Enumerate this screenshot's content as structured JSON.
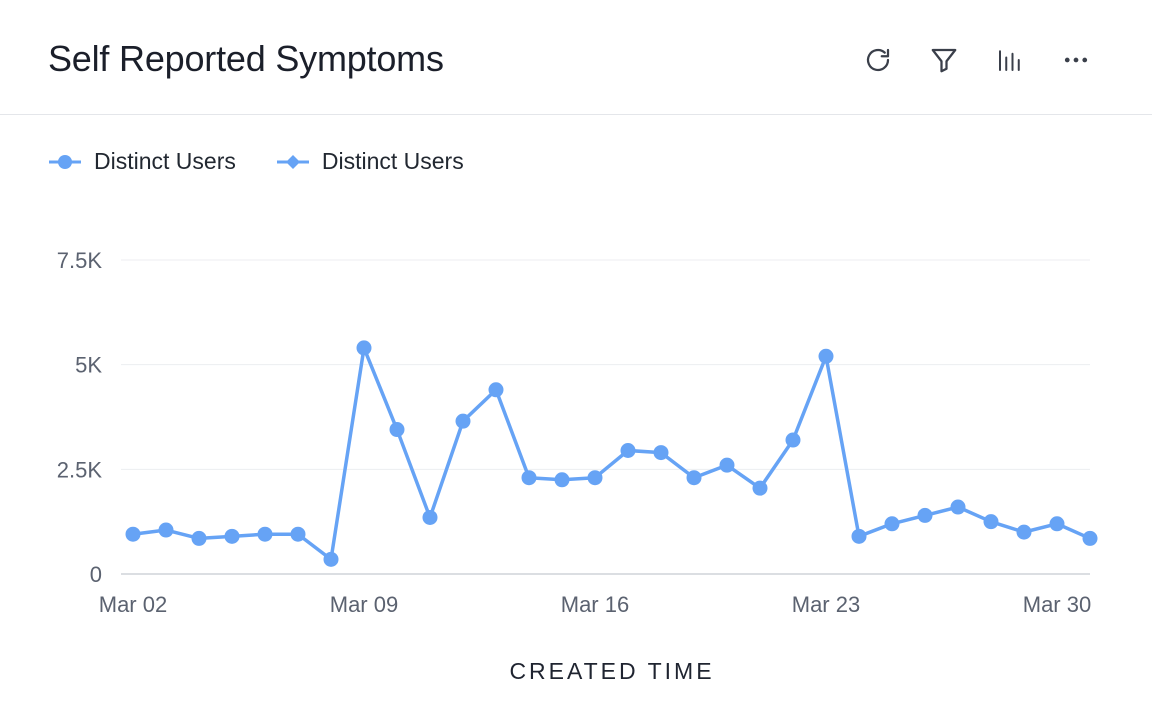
{
  "card": {
    "title": "Self Reported Symptoms",
    "toolbar": {
      "refresh_icon": "refresh-icon",
      "filter_icon": "filter-icon",
      "chart_type_icon": "bar-chart-icon",
      "more_icon": "more-horizontal-icon"
    }
  },
  "colors": {
    "series": "#66a3f5",
    "grid": "#eceef1",
    "axis": "#cfd3d9",
    "tick_text": "#5b6270"
  },
  "chart_data": {
    "type": "line",
    "title": "",
    "xlabel": "CREATED TIME",
    "ylabel": "",
    "ylim": [
      0,
      7500
    ],
    "y_ticks": [
      0,
      2500,
      5000,
      7500
    ],
    "y_tick_labels": [
      "0",
      "2.5K",
      "5K",
      "7.5K"
    ],
    "x_tick_labels": [
      "Mar 02",
      "Mar 09",
      "Mar 16",
      "Mar 23",
      "Mar 30"
    ],
    "x_tick_dates": [
      "Mar 02",
      "Mar 09",
      "Mar 16",
      "Mar 23",
      "Mar 30"
    ],
    "grid": true,
    "legend_position": "top-left",
    "x": [
      "Mar 02",
      "Mar 03",
      "Mar 04",
      "Mar 05",
      "Mar 06",
      "Mar 07",
      "Mar 08",
      "Mar 09",
      "Mar 10",
      "Mar 11",
      "Mar 12",
      "Mar 13",
      "Mar 14",
      "Mar 15",
      "Mar 16",
      "Mar 17",
      "Mar 18",
      "Mar 19",
      "Mar 20",
      "Mar 21",
      "Mar 22",
      "Mar 23",
      "Mar 24",
      "Mar 25",
      "Mar 26",
      "Mar 27",
      "Mar 28",
      "Mar 29",
      "Mar 30",
      "Mar 31"
    ],
    "series": [
      {
        "name": "Distinct Users",
        "marker": "circle",
        "values": [
          950,
          1050,
          850,
          900,
          950,
          950,
          350,
          5400,
          3450,
          1350,
          3650,
          4400,
          2300,
          2250,
          2300,
          2950,
          2900,
          2300,
          2600,
          2050,
          3200,
          5200,
          900,
          1200,
          1400,
          1600,
          1250,
          1000,
          1200,
          850
        ]
      }
    ],
    "legend": [
      {
        "label": "Distinct Users",
        "marker": "circle"
      },
      {
        "label": "Distinct Users",
        "marker": "diamond"
      }
    ]
  }
}
